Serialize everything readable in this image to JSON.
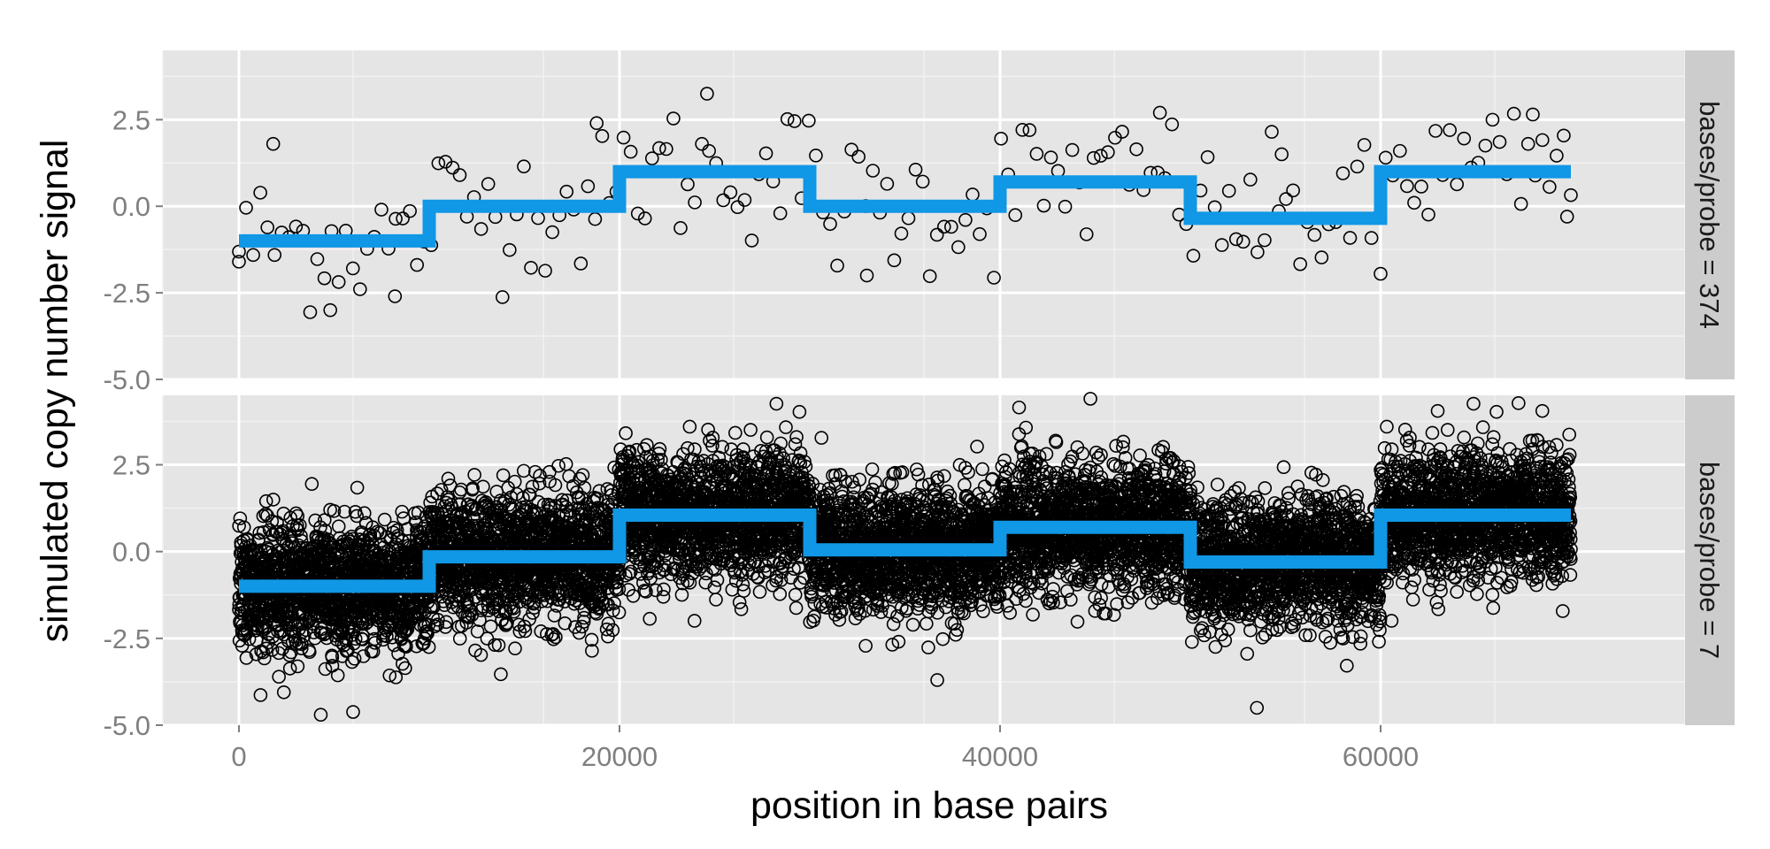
{
  "chart_data": {
    "type": "scatter",
    "xlabel": "position in base pairs",
    "ylabel": "simulated copy number signal",
    "xlim": [
      -4000,
      76000
    ],
    "ylim": [
      -5,
      4.5
    ],
    "x_ticks": [
      0,
      20000,
      40000,
      60000
    ],
    "x_tick_labels": [
      "0",
      "20000",
      "40000",
      "60000"
    ],
    "y_ticks": [
      2.5,
      0,
      -2.5,
      -5
    ],
    "y_tick_labels": [
      "2.5",
      "0.0",
      "-2.5",
      "-5.0"
    ],
    "grid": true,
    "facet_layout": "rows",
    "panels": [
      {
        "strip_label": "bases/probe = 374",
        "points_approx_count": 188,
        "noise_sd": 1.0,
        "series": [
          {
            "type": "step",
            "name": "",
            "color": "#1097e6",
            "x": [
              0,
              10000,
              10000,
              20000,
              20000,
              30000,
              30000,
              40000,
              40000,
              50000,
              50000,
              60000,
              60000,
              70000
            ],
            "y": [
              -1,
              -1,
              0,
              0,
              1,
              1,
              0,
              0,
              0.7,
              0.7,
              -0.35,
              -0.35,
              1,
              1
            ]
          },
          {
            "type": "scatter",
            "name": "",
            "color": "#000000",
            "marker": "open-circle",
            "notable_points": [
              {
                "x": 0,
                "y": -1.6
              },
              {
                "x": 1800,
                "y": 1.8
              },
              {
                "x": 4800,
                "y": -3.0
              },
              {
                "x": 8200,
                "y": -2.6
              },
              {
                "x": 18800,
                "y": 2.4
              },
              {
                "x": 24600,
                "y": 3.25
              },
              {
                "x": 33000,
                "y": -2.0
              },
              {
                "x": 48400,
                "y": 2.7
              },
              {
                "x": 54800,
                "y": 1.5
              },
              {
                "x": 60000,
                "y": -1.95
              },
              {
                "x": 68000,
                "y": 2.65
              },
              {
                "x": 69800,
                "y": -0.3
              }
            ]
          }
        ]
      },
      {
        "strip_label": "bases/probe = 7",
        "points_approx_count": 10000,
        "noise_sd": 0.9,
        "series": [
          {
            "type": "step",
            "name": "",
            "color": "#1097e6",
            "x": [
              0,
              10000,
              10000,
              20000,
              20000,
              30000,
              30000,
              40000,
              40000,
              50000,
              50000,
              60000,
              60000,
              70000
            ],
            "y": [
              -1,
              -1,
              -0.15,
              -0.15,
              1.05,
              1.05,
              0.05,
              0.05,
              0.7,
              0.7,
              -0.3,
              -0.3,
              1.05,
              1.05
            ]
          },
          {
            "type": "scatter",
            "name": "",
            "color": "#000000",
            "marker": "open-circle",
            "notable_points": [
              {
                "x": 4300,
                "y": -4.7
              },
              {
                "x": 11000,
                "y": 2.1
              },
              {
                "x": 41000,
                "y": 4.15
              },
              {
                "x": 36700,
                "y": -3.7
              },
              {
                "x": 53500,
                "y": -4.5
              },
              {
                "x": 63000,
                "y": 4.05
              },
              {
                "x": 68500,
                "y": 4.05
              }
            ]
          }
        ]
      }
    ]
  }
}
